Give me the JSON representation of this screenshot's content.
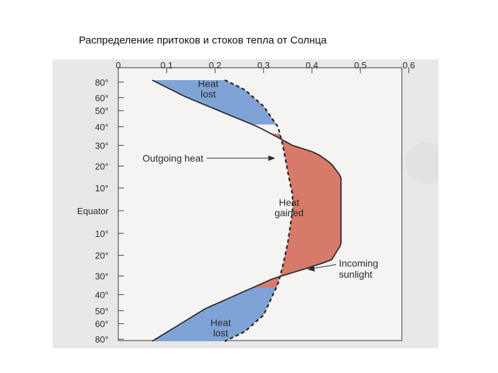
{
  "slide": {
    "title": "Распределение притоков и стоков тепла от Солнца"
  },
  "chart_data": {
    "type": "area",
    "x_ticks": [
      "0",
      "0.1",
      "0.2",
      "0.3",
      "0.4",
      "0.5",
      "0.6"
    ],
    "xlim": [
      0,
      0.6
    ],
    "y_ticks": [
      "80°",
      "60°",
      "50°",
      "40°",
      "30°",
      "20°",
      "10°",
      "Equator",
      "10°",
      "20°",
      "30°",
      "40°",
      "50°",
      "60°",
      "80°"
    ],
    "y_tick_sin": [
      0.985,
      0.866,
      0.766,
      0.643,
      0.5,
      0.342,
      0.174,
      0,
      -0.174,
      -0.342,
      -0.5,
      -0.643,
      -0.766,
      -0.866,
      -0.985
    ],
    "y_axis": "latitude, spaced by sin(latitude)",
    "series": [
      {
        "name": "Incoming sunlight",
        "style": "solid",
        "points": [
          {
            "lat_sin": 1.0,
            "value": 0.07
          },
          {
            "lat_sin": 0.87,
            "value": 0.14
          },
          {
            "lat_sin": 0.64,
            "value": 0.29
          },
          {
            "lat_sin": 0.5,
            "value": 0.36
          },
          {
            "lat_sin": 0.44,
            "value": 0.41
          },
          {
            "lat_sin": 0.36,
            "value": 0.44
          },
          {
            "lat_sin": 0.26,
            "value": 0.46
          },
          {
            "lat_sin": 0.0,
            "value": 0.46
          },
          {
            "lat_sin": -0.26,
            "value": 0.46
          },
          {
            "lat_sin": -0.38,
            "value": 0.44
          },
          {
            "lat_sin": -0.44,
            "value": 0.39
          },
          {
            "lat_sin": -0.52,
            "value": 0.32
          },
          {
            "lat_sin": -0.75,
            "value": 0.18
          },
          {
            "lat_sin": -1.0,
            "value": 0.07
          }
        ]
      },
      {
        "name": "Outgoing heat",
        "style": "dashed",
        "points": [
          {
            "lat_sin": 1.0,
            "value": 0.22
          },
          {
            "lat_sin": 0.93,
            "value": 0.26
          },
          {
            "lat_sin": 0.8,
            "value": 0.3
          },
          {
            "lat_sin": 0.64,
            "value": 0.33
          },
          {
            "lat_sin": 0.5,
            "value": 0.34
          },
          {
            "lat_sin": 0.3,
            "value": 0.35
          },
          {
            "lat_sin": 0.12,
            "value": 0.36
          },
          {
            "lat_sin": 0.0,
            "value": 0.36
          },
          {
            "lat_sin": -0.25,
            "value": 0.35
          },
          {
            "lat_sin": -0.42,
            "value": 0.34
          },
          {
            "lat_sin": -0.56,
            "value": 0.33
          },
          {
            "lat_sin": -0.8,
            "value": 0.3
          },
          {
            "lat_sin": -0.93,
            "value": 0.26
          },
          {
            "lat_sin": -1.0,
            "value": 0.22
          }
        ]
      }
    ],
    "regions": [
      {
        "label": "Heat\nlost",
        "color": "#7fa3d6",
        "lat_range": [
          0.66,
          1.0
        ]
      },
      {
        "label": "Heat\ngained",
        "color": "#d77a6a",
        "lat_range": [
          -0.59,
          0.59
        ]
      },
      {
        "label": "Heat\nlost",
        "color": "#7fa3d6",
        "lat_range": [
          -1.0,
          -0.59
        ]
      }
    ],
    "annotations": [
      {
        "text": "Outgoing heat",
        "points_to": "Outgoing heat"
      },
      {
        "text": "Incoming\nsunlight",
        "points_to": "Incoming sunlight"
      }
    ],
    "colors": {
      "heat_lost": "#7fa3d6",
      "heat_gained": "#d77a6a",
      "lines": "#2b2b2b",
      "panel": "#e9e8e6"
    }
  }
}
